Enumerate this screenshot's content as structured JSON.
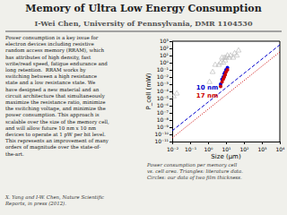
{
  "chart_data": {
    "type": "scatter",
    "title": "Memory of Ultra Low Energy Consumption",
    "subtitle": "I-Wei Chen, University of Pennsylvania, DMR 1104530",
    "x_label": "Size (μm)",
    "y_label": "P_cell (mW)",
    "log": true,
    "grid": false,
    "xlim": [
      0.01,
      10000
    ],
    "ylim": [
      1e-11,
      1000
    ],
    "xticks": [
      {
        "value": 0.01,
        "label": "10⁻²"
      },
      {
        "value": 0.1,
        "label": "10⁻¹"
      },
      {
        "value": 1,
        "label": "10⁰"
      },
      {
        "value": 10,
        "label": "10¹"
      },
      {
        "value": 100,
        "label": "10²"
      },
      {
        "value": 1000,
        "label": "10³"
      },
      {
        "value": 10000,
        "label": "10⁴"
      }
    ],
    "yticks": [
      {
        "value": 1e-11,
        "label": "10⁻¹¹"
      },
      {
        "value": 1e-10,
        "label": "10⁻¹⁰"
      },
      {
        "value": 1e-09,
        "label": "10⁻⁹"
      },
      {
        "value": 1e-08,
        "label": "10⁻⁸"
      },
      {
        "value": 1e-07,
        "label": "10⁻⁷"
      },
      {
        "value": 1e-06,
        "label": "10⁻⁶"
      },
      {
        "value": 1e-05,
        "label": "10⁻⁵"
      },
      {
        "value": 0.0001,
        "label": "10⁻⁴"
      },
      {
        "value": 0.001,
        "label": "10⁻³"
      },
      {
        "value": 0.01,
        "label": "10⁻²"
      },
      {
        "value": 0.1,
        "label": "10⁻¹"
      },
      {
        "value": 1,
        "label": "10⁰"
      },
      {
        "value": 10,
        "label": "10¹"
      },
      {
        "value": 100,
        "label": "10²"
      },
      {
        "value": 1000,
        "label": "10³"
      }
    ],
    "series": [
      {
        "type": "scatter",
        "marker": "triangle",
        "color": "#bbbbbb",
        "x": [
          0.012,
          0.018,
          1.2,
          1.8,
          2.5,
          4.0,
          5.0,
          6.0,
          7.0,
          8.0,
          9.0,
          10.0,
          12.0,
          15.0,
          18.0,
          25.0,
          30.0,
          40.0,
          50.0
        ],
        "values": [
          2e-05,
          5e-05,
          0.002,
          0.05,
          0.5,
          0.5,
          1.0,
          5.0,
          1.0,
          5.0,
          2.0,
          5.0,
          10.0,
          5.0,
          10.0,
          5.0,
          20.0,
          10.0,
          50.0
        ]
      },
      {
        "type": "scatter",
        "marker": "circle",
        "color": "#0000dd",
        "x": [
          5.0,
          6.0,
          7.0,
          8.0,
          9.0,
          10.0,
          12.0
        ],
        "values": [
          0.001,
          0.005,
          0.01,
          0.03,
          0.05,
          0.1,
          0.2
        ]
      },
      {
        "type": "scatter",
        "marker": "circle",
        "color": "#cc0000",
        "x": [
          5.0,
          6.0,
          7.0,
          8.0,
          9.0,
          10.0,
          12.0
        ],
        "values": [
          0.0005,
          0.002,
          0.005,
          0.01,
          0.02,
          0.05,
          0.1
        ]
      },
      {
        "type": "line",
        "line_style": "dashed",
        "color": "#0000cc",
        "x": [
          0.01,
          10000
        ],
        "values": [
          3.1622776601683795e-10,
          316.22776601683796
        ]
      },
      {
        "type": "line",
        "line_style": "dotted",
        "color": "#cc0000",
        "x": [
          0.01,
          10000
        ],
        "values": [
          3.162277660168379e-11,
          31.622776601683793
        ]
      }
    ],
    "annotations": [
      {
        "text": "10 nm",
        "x": 0.22,
        "y": 0.00018,
        "color": "#0000cc"
      },
      {
        "text": "17 nm",
        "x": 0.22,
        "y": 1.2e-05,
        "color": "#cc0000"
      },
      {
        "text": [
          "Power consumption is a key issue for",
          "electron devices including resistive",
          "random access memory (RRAM), which",
          "has attributes of high density, fast",
          "write/read speed, fatigue endurance and",
          "long retention.  RRAM works by",
          "switching between a high resistance",
          "state and a low resistance state. We",
          "have designed a new material and an",
          "circuit architecture that simultaneously",
          "maximize the resistance ratio, minimize",
          "the switching voltage, and minimize the",
          "power consumption. This approach is",
          "scalable over the size of the memory cell,",
          "and will allow future 10 nm x 10 nm",
          "devices to operate at 1 pW per bit level.",
          "This represents an improvement of many",
          "orders of magnitude over the state-of-",
          "the-art."
        ]
      },
      {
        "text": [
          "Power consumption per memory cell",
          "vs. cell area. Triangles: literature data.",
          "Circles: our data of two film thickness."
        ]
      },
      {
        "text": [
          "X. Yang and I-W. Chen, Nature Scientific",
          "Reports, in press (2012)."
        ]
      }
    ]
  }
}
